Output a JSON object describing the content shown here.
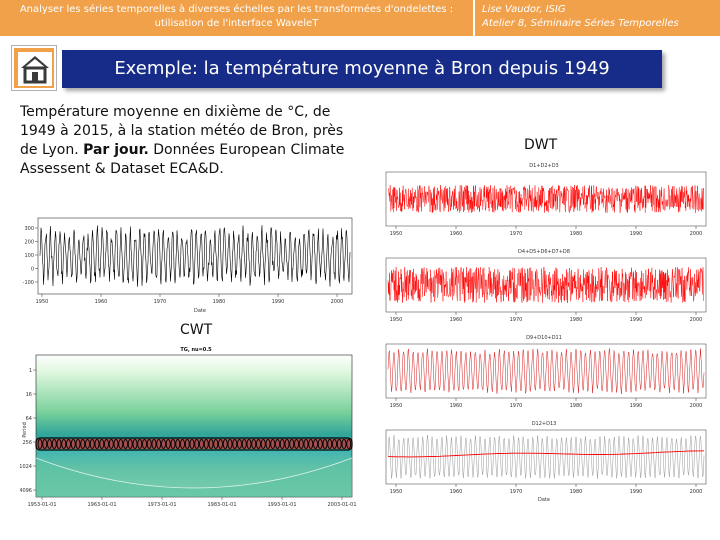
{
  "header": {
    "left_line1": "Analyser les séries temporelles à diverses échelles par les transformées d'ondelettes :",
    "left_line2": "utilisation de l'interface WaveleT",
    "right_line1": "Lise Vaudor, ISIG",
    "right_line2": "Atelier 8, Séminaire Séries Temporelles",
    "color": "#f2a14b"
  },
  "nav": {
    "home_icon": "home-icon"
  },
  "title": "Exemple: la température moyenne à Bron depuis 1949",
  "description": {
    "part1": "Température moyenne en dixième de °C, de 1949 à 2015, à la station météo de Bron, près de Lyon.",
    "part2": "Par jour.",
    "part3": "Données European Climate Assessent & Dataset ECA&D."
  },
  "labels": {
    "dwt": "DWT",
    "cwt": "CWT"
  },
  "raw_plot": {
    "yticks": [
      "300",
      "200",
      "100",
      "0",
      "-100"
    ],
    "xticks": [
      "1950",
      "1960",
      "1970",
      "1980",
      "1990",
      "2000"
    ],
    "xlabel": "Date"
  },
  "cwt_plot": {
    "title": "TG, nu=0.5",
    "xticks": [
      "1953-01-01",
      "1963-01-01",
      "1973-01-01",
      "1983-01-01",
      "1993-01-01",
      "2003-01-01"
    ],
    "yticks": [
      "1",
      "16",
      "64",
      "256",
      "1024",
      "4096"
    ],
    "ylabel": "Period"
  },
  "dwt_panels": [
    {
      "title": "D1+D2+D3",
      "color": "#ff0000"
    },
    {
      "title": "D4+D5+D6+D7+D8",
      "color": "#ff0000"
    },
    {
      "title": "D9+D10+D11",
      "color": "#d61f1f"
    },
    {
      "title": "D12+D13",
      "color": "#999999"
    }
  ],
  "dwt_xticks": [
    "1950",
    "1960",
    "1970",
    "1980",
    "1990",
    "2000"
  ],
  "dwt_xlabel": "Date"
}
